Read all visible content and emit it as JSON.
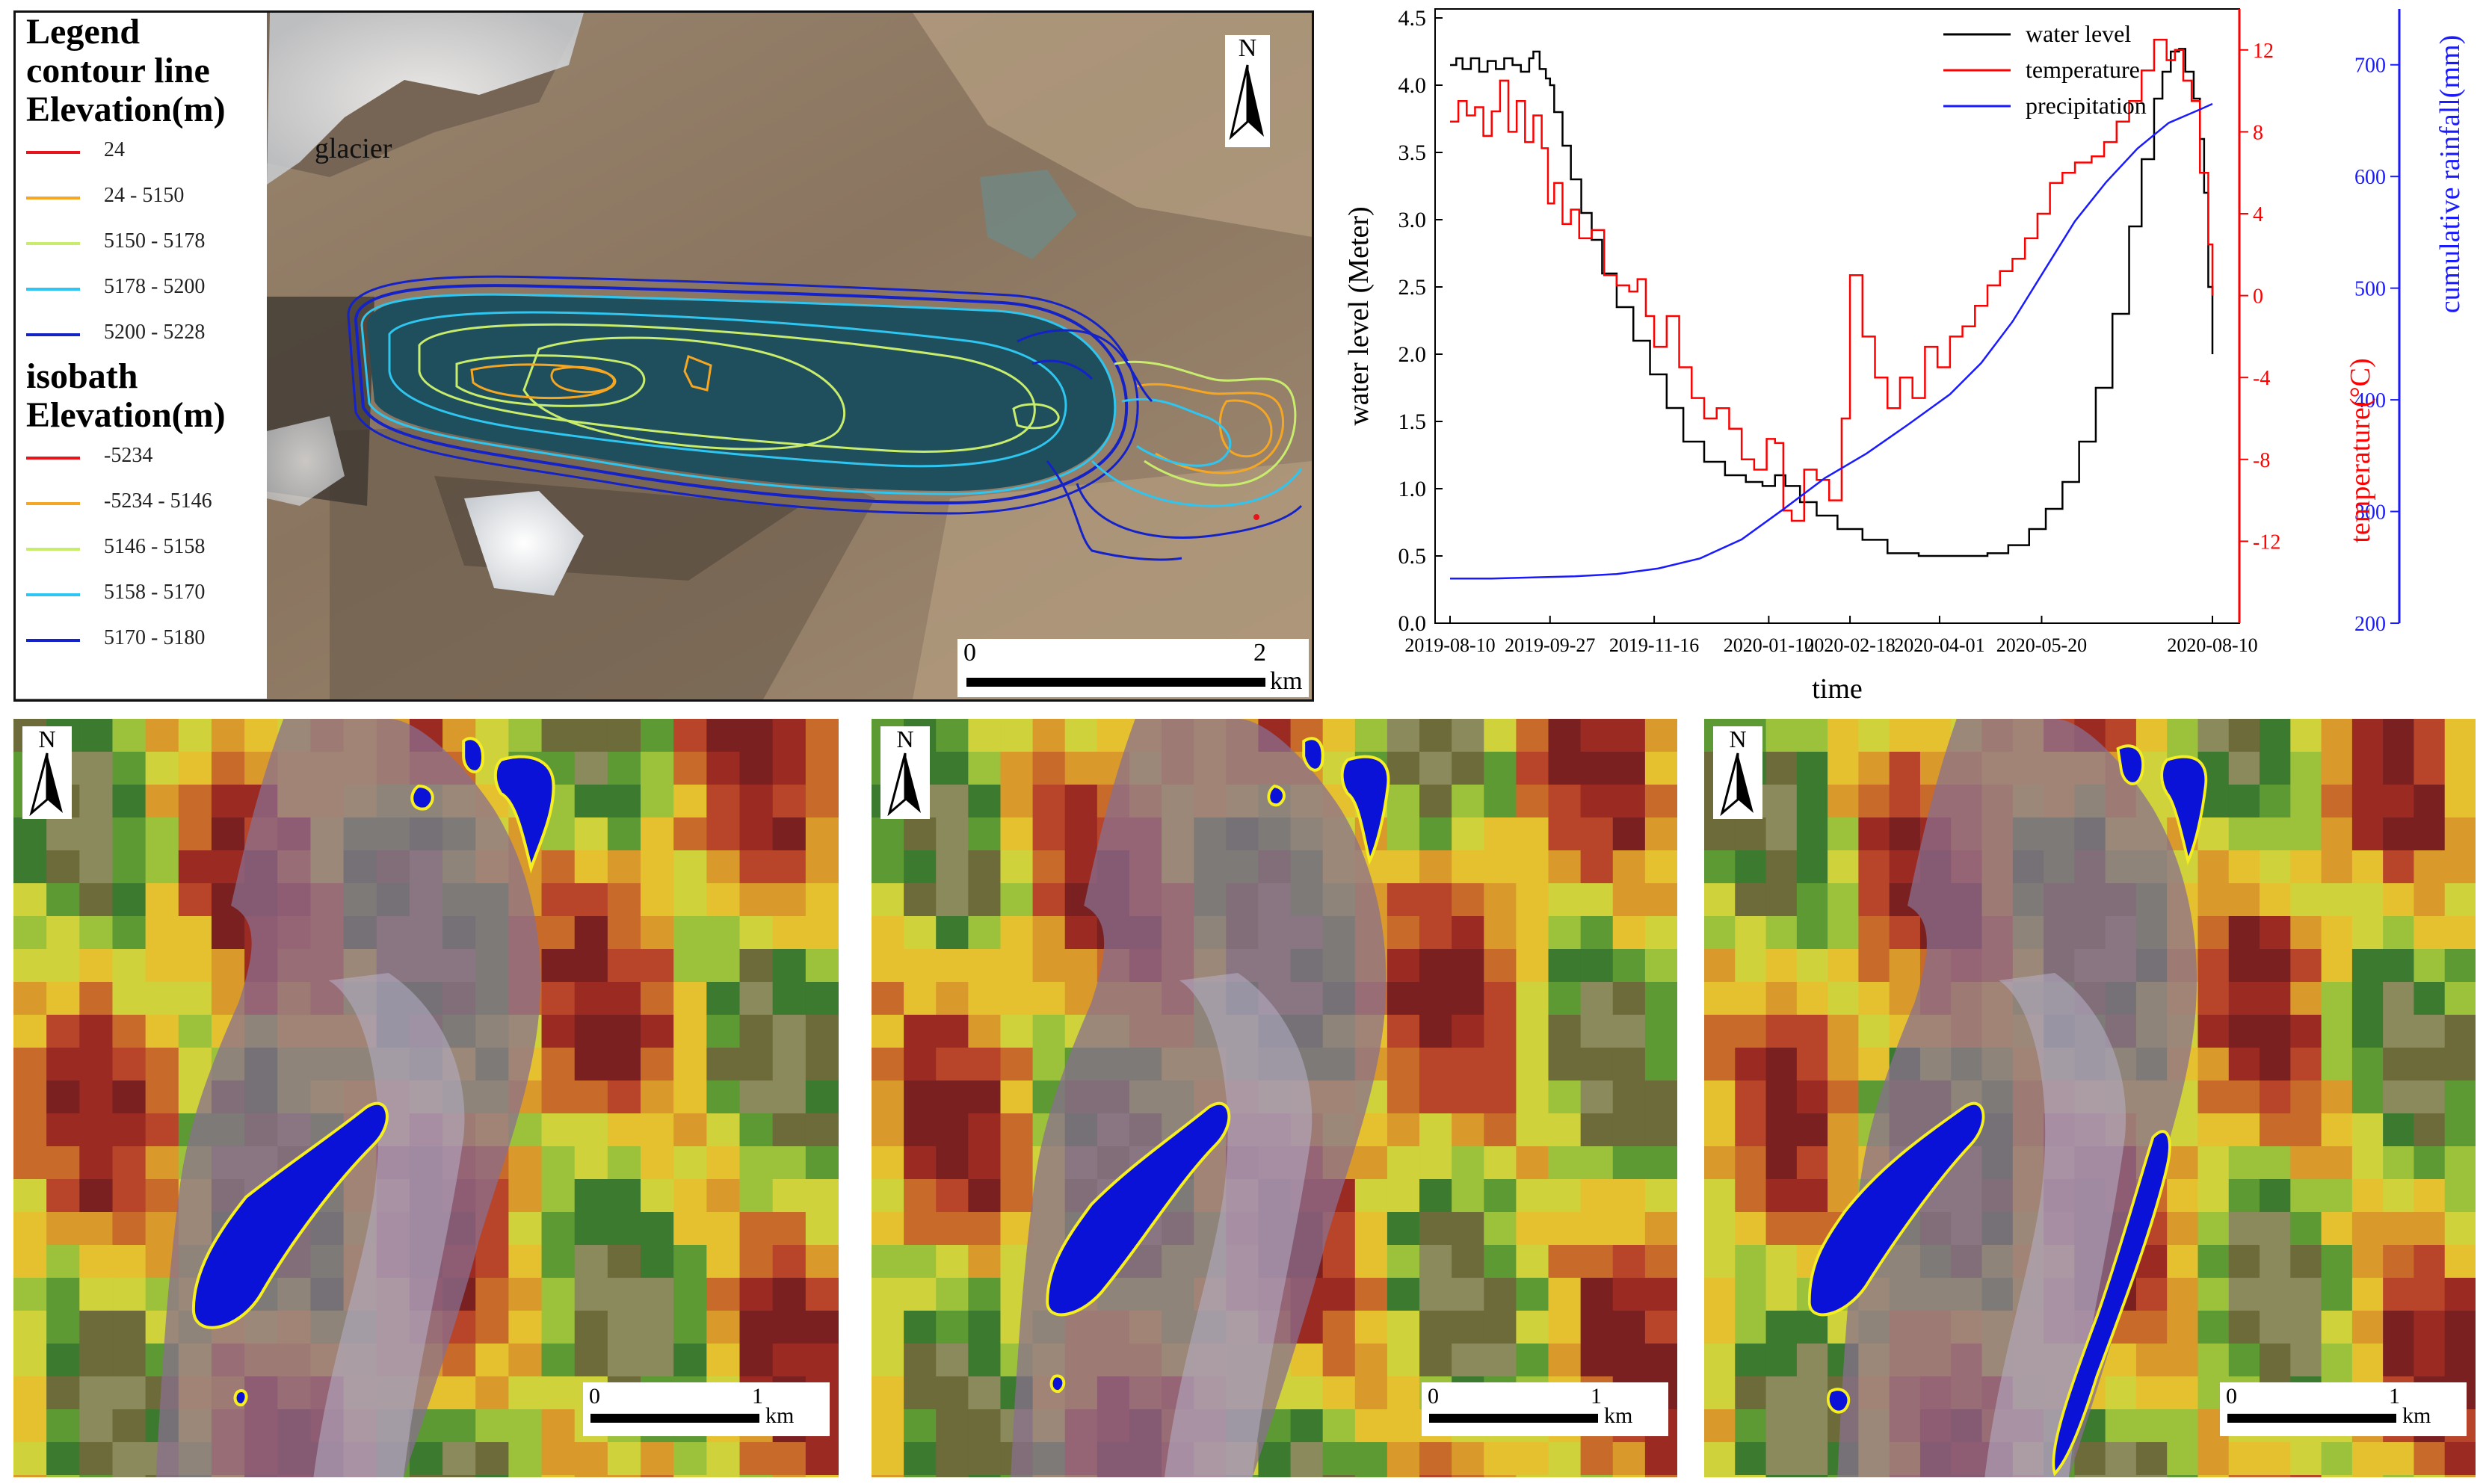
{
  "top_map": {
    "legend_title": "Legend",
    "contour_title_1": "contour line",
    "contour_title_2": "Elevation(m)",
    "contour_items": [
      {
        "label": "24",
        "color": "#e8141c"
      },
      {
        "label": "24 - 5150",
        "color": "#f5a623"
      },
      {
        "label": "5150 - 5178",
        "color": "#c8ec6c"
      },
      {
        "label": "5178 - 5200",
        "color": "#2ec6f0"
      },
      {
        "label": "5200 - 5228",
        "color": "#1422c8"
      }
    ],
    "isobath_title_1": "isobath",
    "isobath_title_2": "Elevation(m)",
    "isobath_items": [
      {
        "label": "-5234",
        "color": "#e8141c"
      },
      {
        "label": "-5234 - 5146",
        "color": "#f5a623"
      },
      {
        "label": "5146 - 5158",
        "color": "#c8ec6c"
      },
      {
        "label": "5158 - 5170",
        "color": "#2ec6f0"
      },
      {
        "label": "5170 - 5180",
        "color": "#1422c8"
      }
    ],
    "glacier_label": "glacier",
    "north": "N",
    "scale": {
      "zero": "0",
      "end": "2",
      "unit": "km"
    }
  },
  "chart_data": {
    "type": "line",
    "xlabel": "time",
    "ylabel_left": "water level (Meter)",
    "ylabel_right_inner": "temperature(°C)",
    "ylabel_right_outer": "cumulative rainfall(mm)",
    "x_ticks": [
      "2019-08-10",
      "2019-09-27",
      "2019-11-16",
      "2020-01-10",
      "2020-02-18",
      "2020-04-01",
      "2020-05-20",
      "2020-08-10"
    ],
    "x_tick_days": [
      0,
      48,
      98,
      153,
      192,
      235,
      284,
      366
    ],
    "xlim_days": [
      0,
      366
    ],
    "ylim_left": [
      0,
      4.5
    ],
    "yticks_left": [
      "0.0",
      "0.5",
      "1.0",
      "1.5",
      "2.0",
      "2.5",
      "3.0",
      "3.5",
      "4.0",
      "4.5"
    ],
    "ylim_temp": [
      -16,
      14
    ],
    "yticks_temp": [
      "-12",
      "-8",
      "-4",
      "0",
      "4",
      "8",
      "12"
    ],
    "ylim_rain": [
      200,
      750
    ],
    "yticks_rain": [
      "200",
      "300",
      "400",
      "500",
      "600",
      "700"
    ],
    "legend": [
      "water level",
      "temperature",
      "precipitation"
    ],
    "legend_position": "top-right",
    "colors": {
      "water_level": "#000000",
      "temperature": "#ff0000",
      "precipitation": "#1a1aff"
    },
    "series": [
      {
        "name": "water level",
        "axis": "left",
        "points": [
          [
            0,
            4.15
          ],
          [
            3,
            4.2
          ],
          [
            6,
            4.12
          ],
          [
            10,
            4.2
          ],
          [
            14,
            4.1
          ],
          [
            18,
            4.18
          ],
          [
            22,
            4.12
          ],
          [
            26,
            4.2
          ],
          [
            30,
            4.15
          ],
          [
            34,
            4.1
          ],
          [
            38,
            4.2
          ],
          [
            40,
            4.25
          ],
          [
            43,
            4.12
          ],
          [
            46,
            4.05
          ],
          [
            48,
            4.0
          ],
          [
            50,
            3.8
          ],
          [
            54,
            3.55
          ],
          [
            58,
            3.3
          ],
          [
            63,
            3.05
          ],
          [
            68,
            2.85
          ],
          [
            73,
            2.6
          ],
          [
            80,
            2.35
          ],
          [
            88,
            2.1
          ],
          [
            96,
            1.85
          ],
          [
            104,
            1.6
          ],
          [
            112,
            1.35
          ],
          [
            122,
            1.2
          ],
          [
            132,
            1.1
          ],
          [
            142,
            1.05
          ],
          [
            150,
            1.02
          ],
          [
            156,
            1.1
          ],
          [
            161,
            1.02
          ],
          [
            168,
            0.9
          ],
          [
            176,
            0.8
          ],
          [
            186,
            0.7
          ],
          [
            198,
            0.62
          ],
          [
            210,
            0.52
          ],
          [
            225,
            0.5
          ],
          [
            245,
            0.5
          ],
          [
            258,
            0.52
          ],
          [
            268,
            0.58
          ],
          [
            278,
            0.7
          ],
          [
            286,
            0.85
          ],
          [
            294,
            1.05
          ],
          [
            302,
            1.35
          ],
          [
            310,
            1.75
          ],
          [
            318,
            2.3
          ],
          [
            326,
            2.95
          ],
          [
            332,
            3.45
          ],
          [
            338,
            3.9
          ],
          [
            342,
            4.1
          ],
          [
            346,
            4.25
          ],
          [
            350,
            4.27
          ],
          [
            353,
            4.1
          ],
          [
            357,
            3.9
          ],
          [
            360,
            3.6
          ],
          [
            362,
            3.2
          ],
          [
            364,
            2.5
          ],
          [
            366,
            2.0
          ]
        ]
      },
      {
        "name": "temperature",
        "axis": "temp",
        "points": [
          [
            0,
            8.5
          ],
          [
            4,
            9.5
          ],
          [
            8,
            8.8
          ],
          [
            12,
            9.2
          ],
          [
            16,
            7.8
          ],
          [
            20,
            9.0
          ],
          [
            24,
            10.5
          ],
          [
            28,
            8.0
          ],
          [
            32,
            9.5
          ],
          [
            36,
            7.5
          ],
          [
            40,
            8.8
          ],
          [
            44,
            7.2
          ],
          [
            47,
            4.5
          ],
          [
            50,
            5.5
          ],
          [
            54,
            3.5
          ],
          [
            58,
            4.2
          ],
          [
            62,
            2.8
          ],
          [
            68,
            3.2
          ],
          [
            74,
            1.0
          ],
          [
            80,
            0.5
          ],
          [
            86,
            0.2
          ],
          [
            90,
            0.8
          ],
          [
            94,
            -1.0
          ],
          [
            98,
            -2.5
          ],
          [
            104,
            -1.0
          ],
          [
            110,
            -3.5
          ],
          [
            116,
            -5.0
          ],
          [
            122,
            -6.0
          ],
          [
            128,
            -5.5
          ],
          [
            134,
            -6.5
          ],
          [
            140,
            -8.0
          ],
          [
            146,
            -8.5
          ],
          [
            152,
            -7.0
          ],
          [
            156,
            -7.2
          ],
          [
            160,
            -10.5
          ],
          [
            164,
            -11.0
          ],
          [
            170,
            -8.5
          ],
          [
            176,
            -9.0
          ],
          [
            182,
            -10.0
          ],
          [
            188,
            -6.0
          ],
          [
            192,
            1.0
          ],
          [
            198,
            -2.0
          ],
          [
            204,
            -4.0
          ],
          [
            210,
            -5.5
          ],
          [
            216,
            -4.0
          ],
          [
            222,
            -5.0
          ],
          [
            228,
            -2.5
          ],
          [
            234,
            -3.5
          ],
          [
            240,
            -2.0
          ],
          [
            246,
            -1.5
          ],
          [
            252,
            -0.5
          ],
          [
            258,
            0.5
          ],
          [
            264,
            1.2
          ],
          [
            270,
            1.8
          ],
          [
            276,
            2.8
          ],
          [
            282,
            4.0
          ],
          [
            288,
            5.5
          ],
          [
            294,
            6.0
          ],
          [
            300,
            6.5
          ],
          [
            308,
            6.8
          ],
          [
            314,
            7.5
          ],
          [
            320,
            8.5
          ],
          [
            326,
            9.5
          ],
          [
            332,
            11.0
          ],
          [
            338,
            12.5
          ],
          [
            344,
            11.5
          ],
          [
            348,
            12.0
          ],
          [
            352,
            10.5
          ],
          [
            356,
            9.5
          ],
          [
            360,
            6.0
          ],
          [
            364,
            2.5
          ],
          [
            366,
            0.0
          ]
        ]
      },
      {
        "name": "precipitation",
        "axis": "rain",
        "points": [
          [
            0,
            240
          ],
          [
            20,
            240
          ],
          [
            40,
            241
          ],
          [
            60,
            242
          ],
          [
            80,
            244
          ],
          [
            100,
            249
          ],
          [
            120,
            258
          ],
          [
            140,
            275
          ],
          [
            160,
            302
          ],
          [
            180,
            330
          ],
          [
            200,
            352
          ],
          [
            220,
            378
          ],
          [
            240,
            405
          ],
          [
            255,
            433
          ],
          [
            270,
            470
          ],
          [
            285,
            515
          ],
          [
            300,
            560
          ],
          [
            315,
            595
          ],
          [
            330,
            625
          ],
          [
            345,
            648
          ],
          [
            360,
            660
          ],
          [
            366,
            665
          ]
        ]
      }
    ]
  },
  "dem_panels": [
    {
      "north": "N",
      "scale": {
        "zero": "0",
        "end": "1",
        "unit": "km"
      }
    },
    {
      "north": "N",
      "scale": {
        "zero": "0",
        "end": "1",
        "unit": "km"
      }
    },
    {
      "north": "N",
      "scale": {
        "zero": "0",
        "end": "1",
        "unit": "km"
      }
    }
  ]
}
